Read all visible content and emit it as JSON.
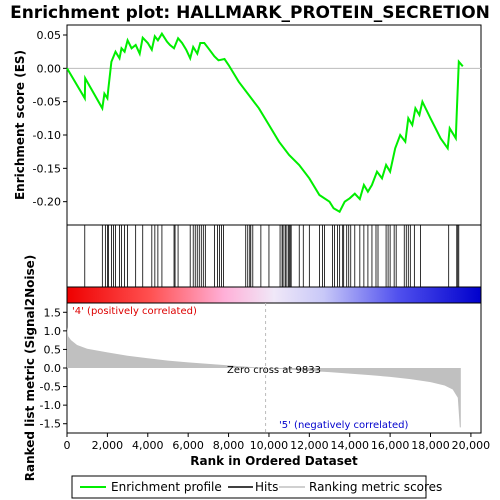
{
  "title": "Enrichment plot: HALLMARK_PROTEIN_SECRETION",
  "colors": {
    "es_line": "#00ee00",
    "hits": "#000000",
    "metric_fill": "#c0c0c0",
    "pos_text": "#dd0000",
    "neg_text": "#0000cc",
    "zero_line": "#bbbbbb"
  },
  "chart_data": {
    "type": "line",
    "x_range": [
      0,
      20500
    ],
    "x_ticks": [
      0,
      2000,
      4000,
      6000,
      8000,
      10000,
      12000,
      14000,
      16000,
      18000,
      20000
    ],
    "x_tick_labels": [
      "0",
      "2,000",
      "4,000",
      "6,000",
      "8,000",
      "10,000",
      "12,000",
      "14,000",
      "16,000",
      "18,000",
      "20,000"
    ],
    "xlabel": "Rank in Ordered Dataset",
    "enrichment": {
      "ylabel": "Enrichment score (ES)",
      "ylim": [
        -0.235,
        0.065
      ],
      "y_ticks": [
        0.05,
        0.0,
        -0.05,
        -0.1,
        -0.15,
        -0.2
      ],
      "y_tick_labels": [
        "0.05",
        "0.00",
        "-0.05",
        "-0.10",
        "-0.15",
        "-0.20"
      ],
      "points": [
        [
          0,
          0.0
        ],
        [
          880,
          -0.045
        ],
        [
          900,
          -0.015
        ],
        [
          1750,
          -0.06
        ],
        [
          1850,
          -0.038
        ],
        [
          2000,
          -0.045
        ],
        [
          2050,
          -0.03
        ],
        [
          2200,
          0.01
        ],
        [
          2400,
          0.025
        ],
        [
          2600,
          0.015
        ],
        [
          2700,
          0.03
        ],
        [
          2850,
          0.025
        ],
        [
          3000,
          0.042
        ],
        [
          3200,
          0.03
        ],
        [
          3400,
          0.035
        ],
        [
          3600,
          0.022
        ],
        [
          3750,
          0.046
        ],
        [
          4000,
          0.038
        ],
        [
          4200,
          0.028
        ],
        [
          4350,
          0.048
        ],
        [
          4500,
          0.042
        ],
        [
          4700,
          0.052
        ],
        [
          4950,
          0.04
        ],
        [
          5100,
          0.035
        ],
        [
          5300,
          0.03
        ],
        [
          5500,
          0.045
        ],
        [
          5700,
          0.038
        ],
        [
          5900,
          0.028
        ],
        [
          6100,
          0.015
        ],
        [
          6250,
          0.032
        ],
        [
          6450,
          0.022
        ],
        [
          6600,
          0.038
        ],
        [
          6800,
          0.038
        ],
        [
          7000,
          0.03
        ],
        [
          7300,
          0.018
        ],
        [
          7500,
          0.012
        ],
        [
          7800,
          0.014
        ],
        [
          8000,
          0.005
        ],
        [
          8500,
          -0.02
        ],
        [
          9000,
          -0.04
        ],
        [
          9500,
          -0.06
        ],
        [
          10000,
          -0.085
        ],
        [
          10500,
          -0.11
        ],
        [
          11000,
          -0.13
        ],
        [
          11500,
          -0.145
        ],
        [
          12000,
          -0.165
        ],
        [
          12500,
          -0.19
        ],
        [
          13000,
          -0.2
        ],
        [
          13200,
          -0.21
        ],
        [
          13500,
          -0.215
        ],
        [
          13750,
          -0.2
        ],
        [
          14000,
          -0.195
        ],
        [
          14250,
          -0.188
        ],
        [
          14500,
          -0.196
        ],
        [
          14700,
          -0.175
        ],
        [
          14900,
          -0.185
        ],
        [
          15100,
          -0.175
        ],
        [
          15350,
          -0.155
        ],
        [
          15600,
          -0.165
        ],
        [
          15800,
          -0.145
        ],
        [
          16000,
          -0.155
        ],
        [
          16250,
          -0.12
        ],
        [
          16500,
          -0.1
        ],
        [
          16750,
          -0.11
        ],
        [
          16900,
          -0.075
        ],
        [
          17100,
          -0.085
        ],
        [
          17250,
          -0.06
        ],
        [
          17450,
          -0.07
        ],
        [
          17600,
          -0.05
        ],
        [
          18000,
          -0.075
        ],
        [
          18500,
          -0.105
        ],
        [
          18850,
          -0.12
        ],
        [
          18950,
          -0.09
        ],
        [
          19250,
          -0.105
        ],
        [
          19300,
          -0.065
        ],
        [
          19400,
          0.01
        ],
        [
          19600,
          0.003
        ]
      ]
    },
    "hits": [
      880,
      1750,
      1900,
      2000,
      2050,
      2200,
      2300,
      2400,
      2600,
      2700,
      2850,
      3000,
      3400,
      3750,
      4200,
      4350,
      4500,
      4700,
      5300,
      5350,
      5500,
      6100,
      6250,
      6350,
      6450,
      6550,
      6650,
      6750,
      6850,
      7300,
      7450,
      7550,
      7650,
      7750,
      8850,
      8950,
      9050,
      9100,
      9200,
      9600,
      10000,
      10550,
      10650,
      10700,
      10800,
      10850,
      10950,
      11000,
      11050,
      11100,
      11500,
      11700,
      12000,
      12500,
      12650,
      12750,
      13150,
      13250,
      13400,
      13500,
      13650,
      13700,
      13850,
      13950,
      14050,
      14250,
      14500,
      14700,
      14900,
      15100,
      15300,
      15400,
      15800,
      15900,
      16000,
      16200,
      16300,
      16700,
      16800,
      16900,
      17000,
      17200,
      17500,
      18900,
      19300,
      19350,
      19400
    ],
    "metric": {
      "ylabel": "Ranked list metric (Signal2Noise)",
      "ylim": [
        -1.75,
        1.75
      ],
      "y_ticks": [
        1.5,
        1.0,
        0.5,
        0.0,
        -0.5,
        -1.0,
        -1.5
      ],
      "y_tick_labels": [
        "1.5",
        "1.0",
        "0.5",
        "0.0",
        "-0.5",
        "-1.0",
        "-1.5"
      ],
      "points": [
        [
          0,
          1.1
        ],
        [
          60,
          0.85
        ],
        [
          200,
          0.75
        ],
        [
          500,
          0.62
        ],
        [
          1000,
          0.52
        ],
        [
          2000,
          0.42
        ],
        [
          3000,
          0.33
        ],
        [
          4000,
          0.26
        ],
        [
          5000,
          0.2
        ],
        [
          6000,
          0.15
        ],
        [
          7000,
          0.11
        ],
        [
          8000,
          0.07
        ],
        [
          9000,
          0.03
        ],
        [
          9833,
          0.0
        ],
        [
          11000,
          -0.04
        ],
        [
          12000,
          -0.08
        ],
        [
          13000,
          -0.11
        ],
        [
          14000,
          -0.15
        ],
        [
          15000,
          -0.19
        ],
        [
          16000,
          -0.24
        ],
        [
          17000,
          -0.3
        ],
        [
          18000,
          -0.38
        ],
        [
          18700,
          -0.47
        ],
        [
          19100,
          -0.58
        ],
        [
          19350,
          -0.8
        ],
        [
          19450,
          -1.6
        ],
        [
          19500,
          -1.6
        ]
      ],
      "zero_cross_rank": 9833,
      "zero_cross_label": "Zero cross at 9833",
      "pos_label": "'4' (positively correlated)",
      "neg_label": "'5' (negatively correlated)"
    },
    "legend": [
      {
        "label": "Enrichment profile",
        "style": "es"
      },
      {
        "label": "Hits",
        "style": "hit"
      },
      {
        "label": "Ranking metric scores",
        "style": "metric"
      }
    ],
    "legend_position": "bottom"
  }
}
